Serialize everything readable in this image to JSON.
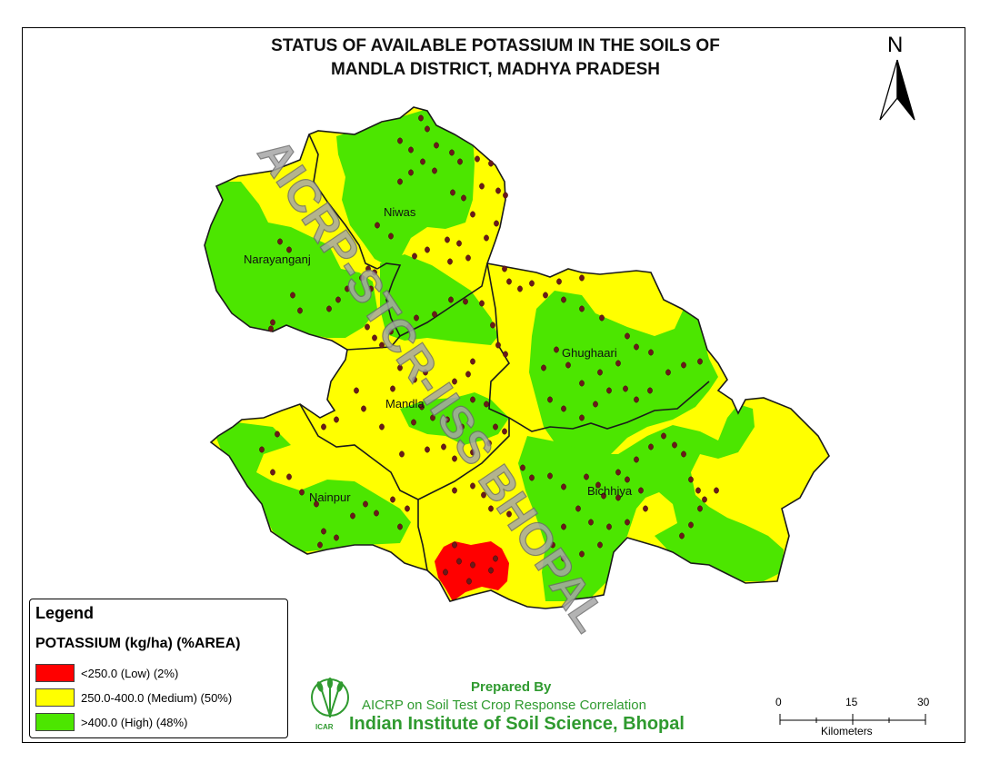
{
  "title": {
    "line1": "STATUS OF AVAILABLE POTASSIUM IN THE SOILS OF",
    "line2": "MANDLA DISTRICT, MADHYA PRADESH"
  },
  "north_arrow": {
    "label": "N",
    "icon": "north-arrow-icon"
  },
  "places": [
    "Niwas",
    "Narayanganj",
    "Ghughaari",
    "Mandla",
    "Nainpur",
    "Bichhiya"
  ],
  "watermark": "AICRP-STCR-IISS BHOPAL",
  "legend": {
    "title": "Legend",
    "subtitle": "POTASSIUM (kg/ha) (%AREA)",
    "classes": [
      {
        "label": "<250.0 (Low) (2%)",
        "color": "#ff0000",
        "percent_area": 2
      },
      {
        "label": "250.0-400.0 (Medium) (50%)",
        "color": "#ffff00",
        "percent_area": 50
      },
      {
        "label": ">400.0 (High) (48%)",
        "color": "#4ce600",
        "percent_area": 48
      }
    ]
  },
  "credits": {
    "prepared_by": "Prepared By",
    "project": "AICRP on Soil Test Crop Response Correlation",
    "institute": "Indian Institute of Soil Science, Bhopal",
    "logo_text": "ICAR",
    "logo_icon": "icar-wheat-logo-icon"
  },
  "scale_bar": {
    "ticks": [
      "0",
      "15",
      "30"
    ],
    "unit": "Kilometers"
  },
  "colors": {
    "low": "#ff0000",
    "medium": "#ffff00",
    "high": "#4ce600",
    "sample_point": "#6b1a1a",
    "boundary": "#1a1a1a",
    "credits_green": "#2f9a2f"
  }
}
